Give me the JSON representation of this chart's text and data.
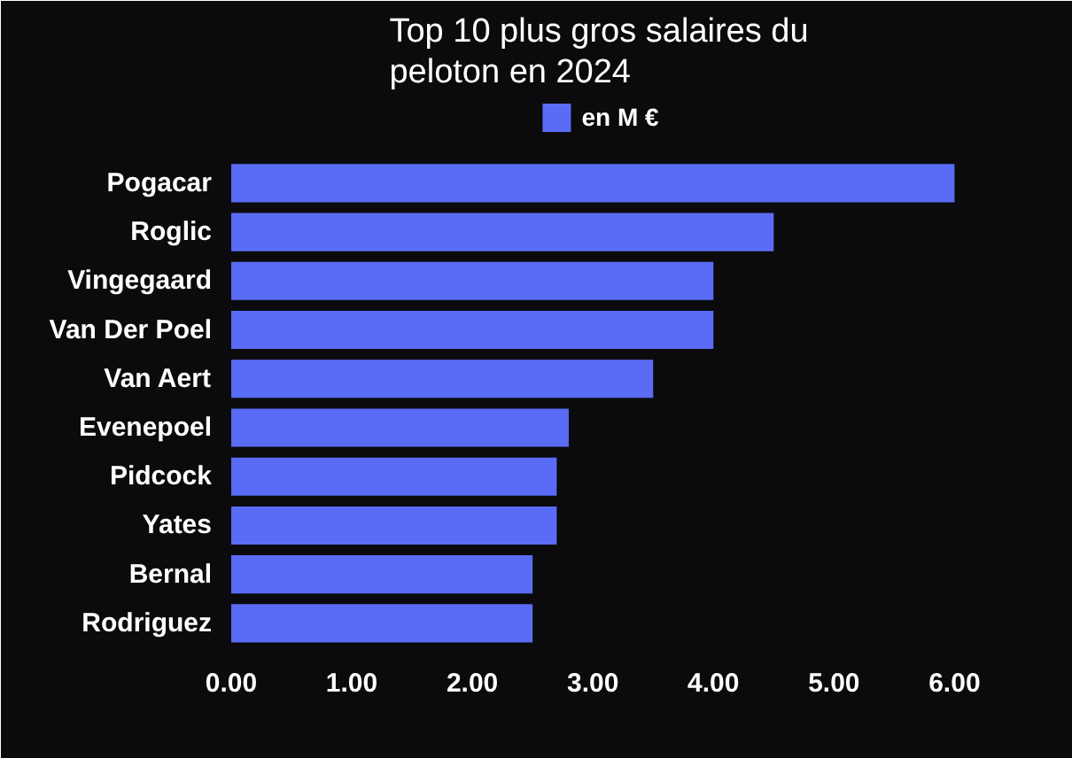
{
  "chart_data": {
    "type": "bar",
    "orientation": "horizontal",
    "title": "Top 10 plus gros salaires du peloton en 2024",
    "categories": [
      "Pogacar",
      "Roglic",
      "Vingegaard",
      "Van Der Poel",
      "Van Aert",
      "Evenepoel",
      "Pidcock",
      "Yates",
      "Bernal",
      "Rodriguez"
    ],
    "series": [
      {
        "name": "en M €",
        "color": "#5a6cf6",
        "values": [
          6.0,
          4.5,
          4.0,
          4.0,
          3.5,
          2.8,
          2.7,
          2.7,
          2.5,
          2.5
        ]
      }
    ],
    "xlim": [
      0,
      6.1
    ],
    "xticks": [
      {
        "value": 0,
        "label": "0.00"
      },
      {
        "value": 1,
        "label": "1.00"
      },
      {
        "value": 2,
        "label": "2.00"
      },
      {
        "value": 3,
        "label": "3.00"
      },
      {
        "value": 4,
        "label": "4.00"
      },
      {
        "value": 5,
        "label": "5.00"
      },
      {
        "value": 6,
        "label": "6.00"
      }
    ],
    "legend": "top",
    "grid": false
  }
}
